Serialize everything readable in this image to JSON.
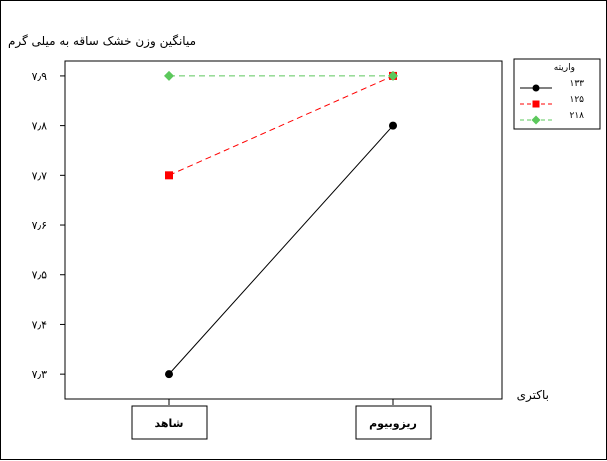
{
  "chart_data": {
    "type": "line",
    "title": "میانگین وزن خشک ساقه به میلی گرم",
    "xlabel": "باکتری",
    "ylabel": "",
    "categories": [
      "شاهد",
      "ریزوبیوم"
    ],
    "ylim": [
      7.25,
      7.93
    ],
    "yticks": [
      {
        "value": 7.3,
        "label": "۷٫۳"
      },
      {
        "value": 7.4,
        "label": "۷٫۴"
      },
      {
        "value": 7.5,
        "label": "۷٫۵"
      },
      {
        "value": 7.6,
        "label": "۷٫۶"
      },
      {
        "value": 7.7,
        "label": "۷٫۷"
      },
      {
        "value": 7.8,
        "label": "۷٫۸"
      },
      {
        "value": 7.9,
        "label": "۷٫۹"
      }
    ],
    "grid": false,
    "legend_title": "واریته",
    "legend_position": "right",
    "series": [
      {
        "name": "۱۳۳",
        "values": [
          7.3,
          7.8
        ],
        "color": "#000000",
        "marker": "circle",
        "dash": "solid"
      },
      {
        "name": "۱۲۵",
        "values": [
          7.7,
          7.9
        ],
        "color": "#ff0000",
        "marker": "square",
        "dash": "dashed"
      },
      {
        "name": "۲۱۸",
        "values": [
          7.9,
          7.9
        ],
        "color": "#5cc85c",
        "marker": "diamond",
        "dash": "dashed"
      }
    ]
  }
}
